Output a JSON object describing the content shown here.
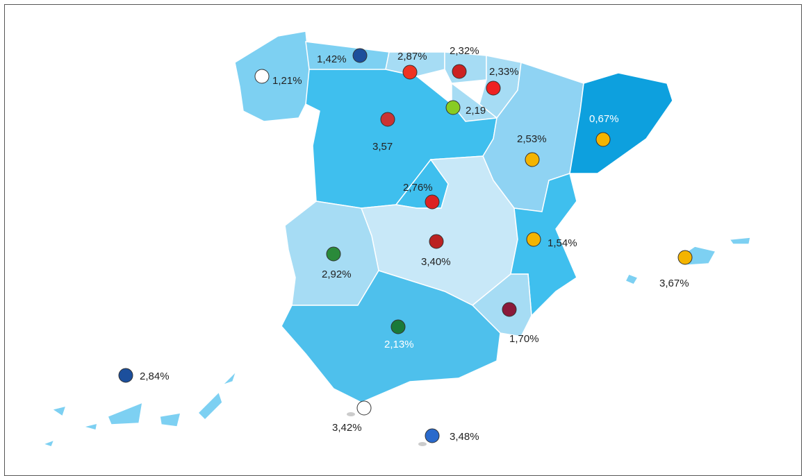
{
  "regions": [
    {
      "label": "1,21%"
    },
    {
      "label": "1,42%"
    },
    {
      "label": "2,87%"
    },
    {
      "label": "2,32%"
    },
    {
      "label": "2,33%"
    },
    {
      "label": "2,19"
    },
    {
      "label": "3,57"
    },
    {
      "label": "2,53%"
    },
    {
      "label": "0,67%"
    },
    {
      "label": "2,76%"
    },
    {
      "label": "3,40%"
    },
    {
      "label": "2,92%"
    },
    {
      "label": "1,54%"
    },
    {
      "label": "1,70%"
    },
    {
      "label": "2,13%"
    },
    {
      "label": "3,67%"
    },
    {
      "label": "2,84%"
    },
    {
      "label": "3,42%"
    },
    {
      "label": "3,48%"
    }
  ]
}
